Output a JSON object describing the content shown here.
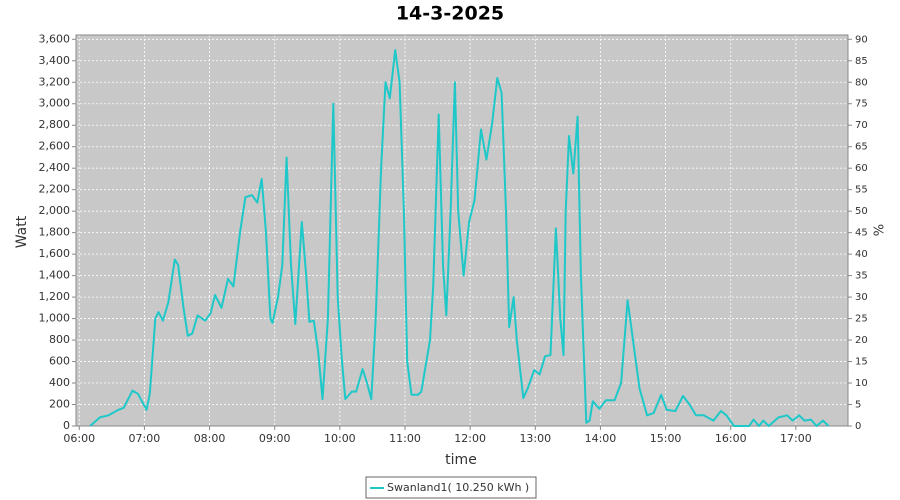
{
  "chart_data": {
    "type": "line",
    "title": "14-3-2025",
    "x_label": "time",
    "y_label": "Watt",
    "y2_label": "%",
    "x": [
      "06:10",
      "06:19",
      "06:27",
      "06:36",
      "06:41",
      "06:49",
      "06:54",
      "07:02",
      "07:05",
      "07:10",
      "07:13",
      "07:17",
      "07:22",
      "07:28",
      "07:31",
      "07:36",
      "07:40",
      "07:44",
      "07:49",
      "07:56",
      "08:01",
      "08:05",
      "08:11",
      "08:17",
      "08:22",
      "08:28",
      "08:33",
      "08:39",
      "08:44",
      "08:48",
      "08:52",
      "08:56",
      "08:58",
      "09:03",
      "09:07",
      "09:11",
      "09:15",
      "09:19",
      "09:25",
      "09:29",
      "09:32",
      "09:36",
      "09:40",
      "09:44",
      "09:49",
      "09:54",
      "09:58",
      "10:02",
      "10:05",
      "10:11",
      "10:15",
      "10:21",
      "10:25",
      "10:29",
      "10:33",
      "10:38",
      "10:42",
      "10:46",
      "10:51",
      "10:55",
      "10:59",
      "11:02",
      "11:06",
      "11:12",
      "11:15",
      "11:23",
      "11:26",
      "11:31",
      "11:35",
      "11:38",
      "11:42",
      "11:46",
      "11:49",
      "11:54",
      "11:59",
      "12:04",
      "12:10",
      "12:15",
      "12:20",
      "12:25",
      "12:29",
      "12:33",
      "12:36",
      "12:40",
      "12:43",
      "12:49",
      "12:53",
      "12:59",
      "13:04",
      "13:09",
      "13:14",
      "13:19",
      "13:23",
      "13:26",
      "13:28",
      "13:31",
      "13:35",
      "13:39",
      "13:42",
      "13:47",
      "13:50",
      "13:53",
      "13:59",
      "14:05",
      "14:13",
      "14:19",
      "14:25",
      "14:30",
      "14:36",
      "14:43",
      "14:49",
      "14:56",
      "15:01",
      "15:09",
      "15:16",
      "15:22",
      "15:28",
      "15:35",
      "15:44",
      "15:51",
      "15:56",
      "16:03",
      "16:17",
      "16:21",
      "16:26",
      "16:30",
      "16:35",
      "16:44",
      "16:52",
      "16:57",
      "17:03",
      "17:08",
      "17:14",
      "17:19",
      "17:25",
      "17:30"
    ],
    "series": [
      {
        "name": "Swanland1( 10.250 kWh )",
        "color": "#1ec8c8",
        "values": [
          0,
          80,
          100,
          150,
          170,
          330,
          300,
          150,
          300,
          1000,
          1060,
          980,
          1150,
          1550,
          1500,
          1100,
          840,
          860,
          1030,
          980,
          1050,
          1220,
          1100,
          1370,
          1300,
          1800,
          2130,
          2150,
          2080,
          2300,
          1800,
          1000,
          960,
          1200,
          1500,
          2500,
          1500,
          950,
          1900,
          1400,
          970,
          980,
          700,
          250,
          1000,
          3000,
          1200,
          600,
          250,
          320,
          320,
          530,
          400,
          250,
          1000,
          2400,
          3200,
          3050,
          3500,
          3200,
          2000,
          600,
          290,
          290,
          320,
          800,
          1300,
          2900,
          1500,
          1030,
          2000,
          3200,
          2000,
          1400,
          1900,
          2100,
          2760,
          2480,
          2800,
          3240,
          3100,
          2000,
          920,
          1200,
          800,
          260,
          350,
          520,
          480,
          650,
          660,
          1840,
          1000,
          660,
          2000,
          2700,
          2350,
          2880,
          1400,
          30,
          50,
          230,
          160,
          240,
          240,
          400,
          1170,
          800,
          350,
          100,
          120,
          290,
          150,
          140,
          280,
          200,
          100,
          100,
          50,
          140,
          100,
          0,
          0,
          60,
          0,
          50,
          0,
          80,
          100,
          50,
          100,
          50,
          60,
          0,
          50,
          0
        ]
      }
    ],
    "xlim": [
      "05:57",
      "17:48"
    ],
    "xticks": [
      "06:00",
      "07:00",
      "08:00",
      "09:00",
      "10:00",
      "11:00",
      "12:00",
      "13:00",
      "14:00",
      "15:00",
      "16:00",
      "17:00"
    ],
    "ylim": [
      0,
      3640
    ],
    "yticks": [
      0,
      200,
      400,
      600,
      800,
      {
        "value": 1000,
        "label": "1,000"
      },
      {
        "value": 1200,
        "label": "1,200"
      },
      {
        "value": 1400,
        "label": "1,400"
      },
      {
        "value": 1600,
        "label": "1,600"
      },
      {
        "value": 1800,
        "label": "1,800"
      },
      {
        "value": 2000,
        "label": "2,000"
      },
      {
        "value": 2200,
        "label": "2,200"
      },
      {
        "value": 2400,
        "label": "2,400"
      },
      {
        "value": 2600,
        "label": "2,600"
      },
      {
        "value": 2800,
        "label": "2,800"
      },
      {
        "value": 3000,
        "label": "3,000"
      },
      {
        "value": 3200,
        "label": "3,200"
      },
      {
        "value": 3400,
        "label": "3,400"
      },
      {
        "value": 3600,
        "label": "3,600"
      }
    ],
    "y2lim": [
      0,
      91
    ],
    "y2ticks": [
      0,
      5,
      10,
      15,
      20,
      25,
      30,
      35,
      40,
      45,
      50,
      55,
      60,
      65,
      70,
      75,
      80,
      85,
      90
    ],
    "grid": true,
    "plot_background": "#c8c8c8",
    "legend": "bottom"
  }
}
